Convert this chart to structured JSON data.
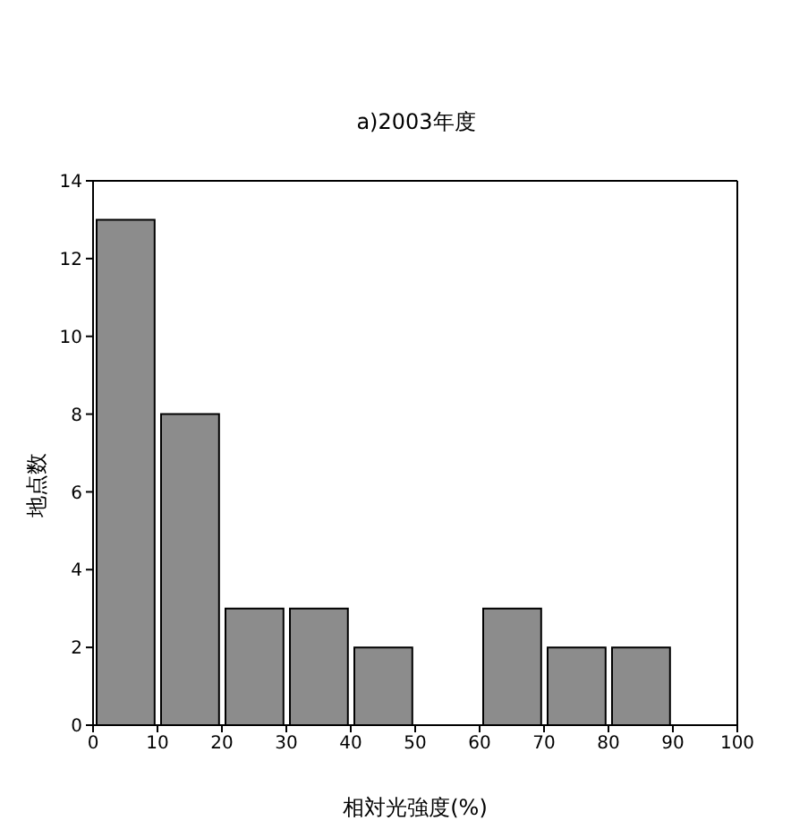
{
  "chart_data": {
    "type": "histogram",
    "title": "a)2003年度",
    "xlabel": "相対光強度(%)",
    "ylabel": "地点数",
    "bins": [
      0,
      10,
      20,
      30,
      40,
      50,
      60,
      70,
      80,
      90,
      100
    ],
    "values": [
      13,
      8,
      3,
      3,
      2,
      0,
      3,
      2,
      2,
      0
    ],
    "color": "#8c8c8c",
    "xlim": [
      0,
      100
    ],
    "xticks": [
      0,
      10,
      20,
      30,
      40,
      50,
      60,
      70,
      80,
      90,
      100
    ],
    "ylim": [
      0,
      14
    ],
    "yticks": [
      0,
      2,
      4,
      6,
      8,
      10,
      12,
      14
    ]
  }
}
